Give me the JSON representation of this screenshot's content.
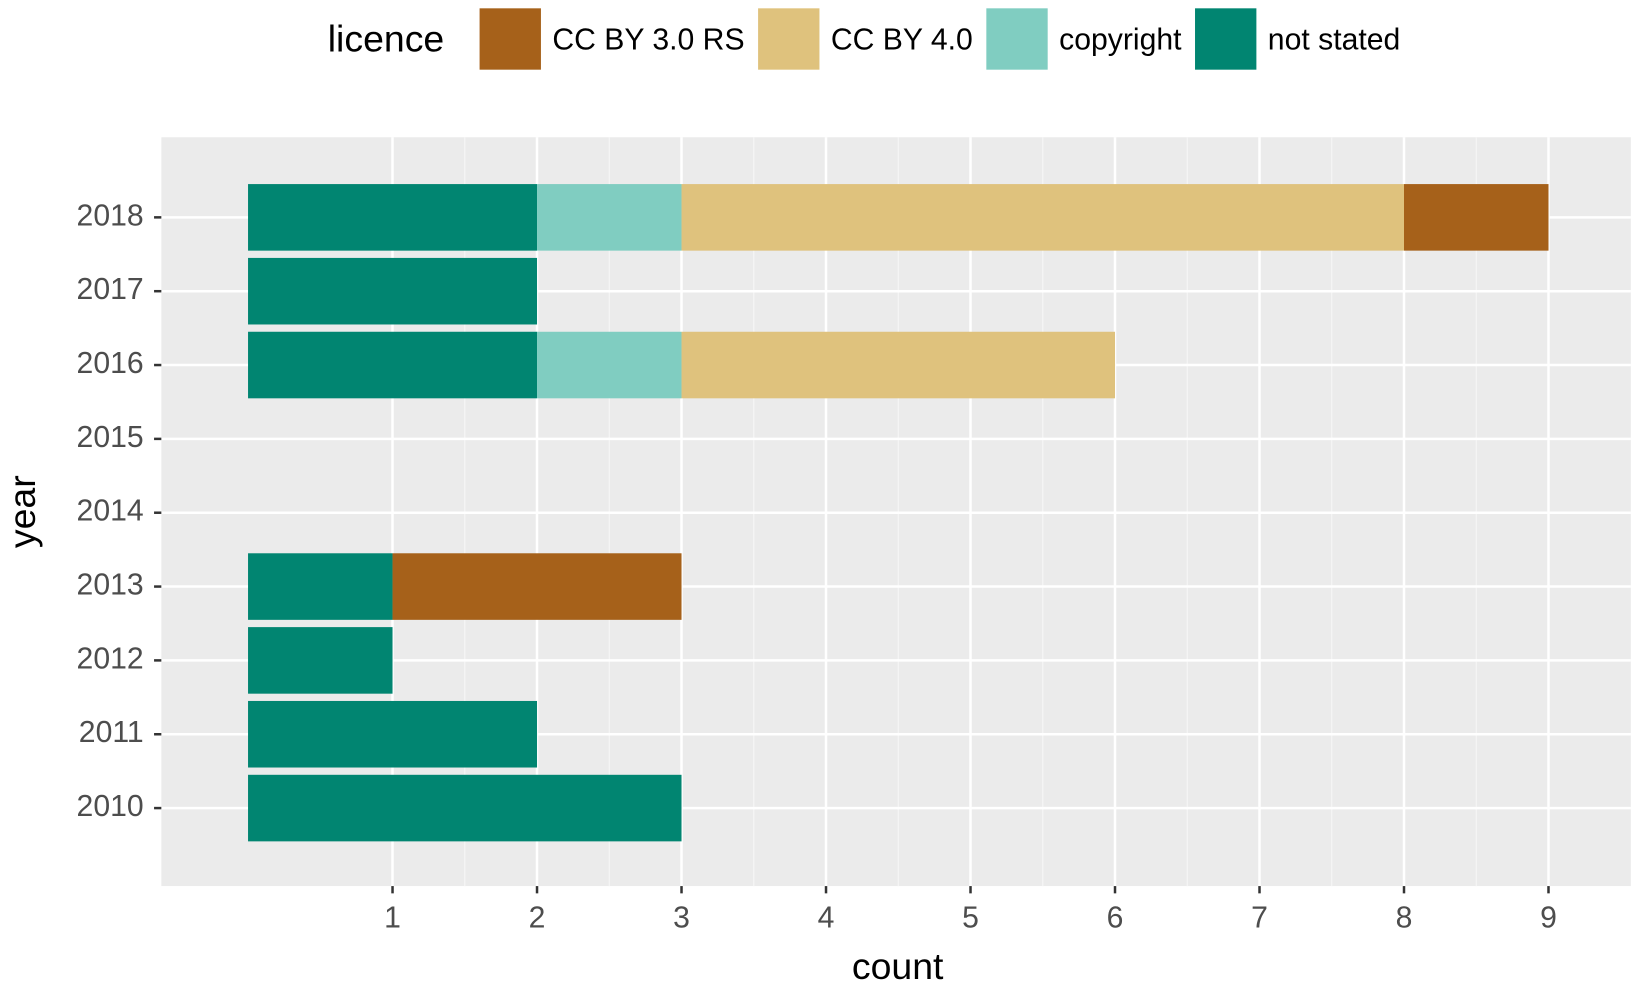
{
  "chart_data": {
    "type": "stacked-bar-horizontal",
    "x_label": "count",
    "y_label": "year",
    "legend_title": "licence",
    "legend_position": "top",
    "categories": [
      "2010",
      "2011",
      "2012",
      "2013",
      "2014",
      "2015",
      "2016",
      "2017",
      "2018"
    ],
    "series": [
      {
        "name": "CC BY 3.0 RS",
        "color": "#a6611a",
        "values": [
          0,
          0,
          0,
          2,
          0,
          0,
          0,
          0,
          1
        ]
      },
      {
        "name": "CC BY 4.0",
        "color": "#dfc27d",
        "values": [
          0,
          0,
          0,
          0,
          0,
          0,
          3,
          0,
          5
        ]
      },
      {
        "name": "copyright",
        "color": "#80cdc1",
        "values": [
          0,
          0,
          0,
          0,
          0,
          0,
          1,
          0,
          1
        ]
      },
      {
        "name": "not stated",
        "color": "#018571",
        "values": [
          3,
          2,
          1,
          1,
          0,
          0,
          2,
          2,
          2
        ]
      }
    ],
    "xlim": [
      -0.6,
      9.57
    ],
    "xticks": [
      1,
      2,
      3,
      4,
      5,
      6,
      7,
      8,
      9
    ],
    "grid": true
  }
}
